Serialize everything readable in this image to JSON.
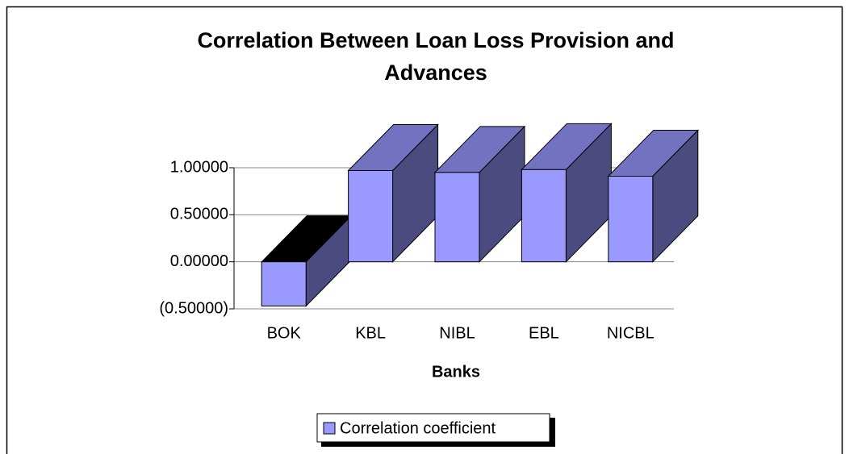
{
  "chart_data": {
    "type": "bar3d",
    "title": "Correlation Between Loan Loss Provision and Advances",
    "x_label": "Banks",
    "categories": [
      "BOK",
      "KBL",
      "NIBL",
      "EBL",
      "NICBL"
    ],
    "series": [
      {
        "name": "Correlation coefficient",
        "color": "#9999ff",
        "values": [
          -0.47,
          0.97,
          0.95,
          0.98,
          0.91
        ]
      }
    ],
    "ylim": [
      -0.5,
      1.0
    ],
    "yticks": [
      {
        "value": -0.5,
        "label": "(0.50000)"
      },
      {
        "value": 0,
        "label": "0.00000"
      },
      {
        "value": 0.5,
        "label": "0.50000"
      },
      {
        "value": 1.0,
        "label": "1.00000"
      }
    ],
    "grid": true
  }
}
